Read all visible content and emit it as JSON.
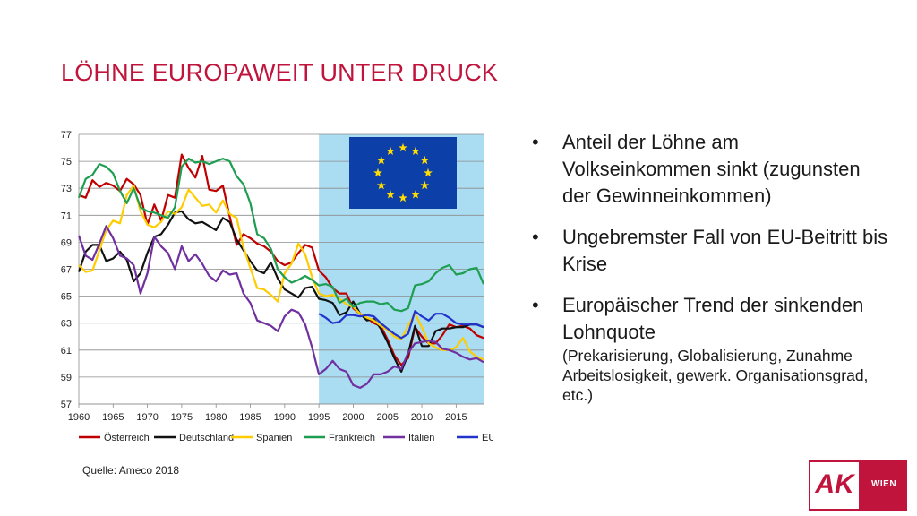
{
  "slide": {
    "title": "LÖHNE EUROPAWEIT UNTER DRUCK",
    "source": "Quelle: Ameco 2018",
    "logo_text": "AK",
    "logo_subtext": "WIEN"
  },
  "bullets": [
    {
      "text": "Anteil der Löhne am Volkseinkommen sinkt (zugunsten der Gewinneinkommen)",
      "sub": ""
    },
    {
      "text": "Ungebremster Fall von EU-Beitritt bis Krise",
      "sub": ""
    },
    {
      "text": "Europäischer Trend der sinkenden Lohnquote",
      "sub": "(Prekarisierung, Globalisierung, Zunahme Arbeitslosigkeit, gewerk. Organisationsgrad, etc.)"
    }
  ],
  "bullet_char": "•",
  "chart_data": {
    "type": "line",
    "ylim": [
      57,
      77
    ],
    "yticks": [
      57,
      59,
      61,
      63,
      65,
      67,
      69,
      71,
      73,
      75,
      77
    ],
    "xlim": [
      1960,
      2019
    ],
    "xticks": [
      1960,
      1965,
      1970,
      1975,
      1980,
      1985,
      1990,
      1995,
      2000,
      2005,
      2010,
      2015
    ],
    "highlight_range": [
      1995,
      2019
    ],
    "highlight_color": "#aadcf2",
    "flag": {
      "stars": 12,
      "background": "#0d3fa8",
      "star_color": "#ffdd00"
    },
    "legend_position": "bottom",
    "series": [
      {
        "name": "Österreich",
        "color": "#c00000",
        "start": 1960,
        "values": [
          72.5,
          72.3,
          73.6,
          73.1,
          73.4,
          73.2,
          72.8,
          73.7,
          73.3,
          72.5,
          70.3,
          71.8,
          70.6,
          72.5,
          72.3,
          75.5,
          74.5,
          73.8,
          75.4,
          72.9,
          72.8,
          73.2,
          70.9,
          68.8,
          69.6,
          69.3,
          68.9,
          68.7,
          68.3,
          67.6,
          67.3,
          67.5,
          68.2,
          68.8,
          68.6,
          66.9,
          66.4,
          65.6,
          65.2,
          65.2,
          64.1,
          63.7,
          63.4,
          63.0,
          62.8,
          61.8,
          60.6,
          59.9,
          60.4,
          62.7,
          62.0,
          61.5,
          61.5,
          62.1,
          62.9,
          62.7,
          62.8,
          62.6,
          62.1,
          61.9
        ]
      },
      {
        "name": "Deutschland",
        "color": "#111111",
        "start": 1960,
        "values": [
          66.8,
          68.3,
          68.8,
          68.8,
          67.6,
          67.8,
          68.3,
          67.7,
          66.1,
          66.7,
          68.2,
          69.4,
          69.6,
          70.3,
          71.2,
          71.3,
          70.7,
          70.4,
          70.5,
          70.2,
          69.9,
          70.8,
          70.5,
          69.2,
          68.4,
          67.6,
          66.9,
          66.7,
          67.5,
          66.3,
          65.5,
          65.2,
          64.9,
          65.6,
          65.7,
          64.8,
          64.7,
          64.5,
          63.6,
          63.8,
          64.6,
          63.7,
          63.2,
          63.3,
          62.6,
          61.6,
          60.4,
          59.4,
          60.7,
          62.8,
          61.3,
          61.3,
          62.4,
          62.6,
          62.6,
          62.7,
          62.7,
          62.9,
          62.9,
          62.7
        ]
      },
      {
        "name": "Spanien",
        "color": "#ffcc00",
        "start": 1960,
        "values": [
          67.3,
          66.8,
          66.9,
          68.4,
          69.9,
          70.6,
          70.4,
          72.5,
          73.2,
          71.3,
          70.3,
          70.1,
          70.5,
          71.3,
          71.1,
          71.6,
          72.9,
          72.3,
          71.7,
          71.8,
          71.2,
          72.1,
          71.1,
          70.8,
          68.6,
          67.1,
          65.6,
          65.5,
          65.1,
          64.6,
          66.7,
          67.4,
          68.9,
          68.1,
          66.4,
          65.2,
          65.0,
          65.1,
          64.8,
          64.4,
          64.2,
          63.7,
          63.4,
          63.2,
          62.8,
          62.5,
          62.0,
          61.8,
          62.8,
          63.7,
          62.7,
          61.5,
          61.2,
          61.0,
          61.0,
          61.2,
          61.9,
          60.9,
          60.5,
          60.3
        ]
      },
      {
        "name": "Frankreich",
        "color": "#1e9e50",
        "start": 1960,
        "values": [
          72.3,
          73.7,
          74.0,
          74.8,
          74.6,
          74.1,
          72.8,
          71.9,
          73.0,
          71.6,
          71.3,
          71.2,
          71.0,
          70.8,
          71.6,
          74.6,
          75.2,
          74.9,
          75.0,
          74.8,
          75.0,
          75.2,
          75.0,
          73.9,
          73.3,
          71.9,
          69.6,
          69.3,
          68.5,
          67.0,
          66.4,
          66.0,
          66.2,
          66.5,
          66.2,
          65.8,
          65.9,
          65.7,
          64.5,
          64.8,
          64.2,
          64.5,
          64.6,
          64.6,
          64.4,
          64.5,
          64.0,
          63.9,
          64.1,
          65.8,
          65.9,
          66.1,
          66.7,
          67.1,
          67.3,
          66.6,
          66.7,
          67.0,
          67.1,
          65.9
        ]
      },
      {
        "name": "Italien",
        "color": "#7030a0",
        "start": 1960,
        "values": [
          69.5,
          68.0,
          67.7,
          68.9,
          70.2,
          69.3,
          68.0,
          67.8,
          67.3,
          65.2,
          66.7,
          69.4,
          68.7,
          68.2,
          67.0,
          68.7,
          67.6,
          68.1,
          67.4,
          66.5,
          66.1,
          66.9,
          66.6,
          66.7,
          65.2,
          64.5,
          63.2,
          63.0,
          62.8,
          62.4,
          63.5,
          64.0,
          63.8,
          62.9,
          61.2,
          59.2,
          59.6,
          60.2,
          59.6,
          59.4,
          58.4,
          58.2,
          58.5,
          59.2,
          59.2,
          59.4,
          59.8,
          59.6,
          60.8,
          61.5,
          61.6,
          61.7,
          61.6,
          61.1,
          61.0,
          60.8,
          60.5,
          60.3,
          60.4,
          60.1
        ]
      },
      {
        "name": "EU",
        "color": "#2233cc",
        "start": 1995,
        "values": [
          63.7,
          63.4,
          63.0,
          63.1,
          63.6,
          63.6,
          63.5,
          63.6,
          63.5,
          63.0,
          62.6,
          62.2,
          61.9,
          62.2,
          63.9,
          63.5,
          63.2,
          63.7,
          63.7,
          63.4,
          63.0,
          62.9,
          62.9,
          62.9,
          62.7
        ]
      }
    ]
  }
}
